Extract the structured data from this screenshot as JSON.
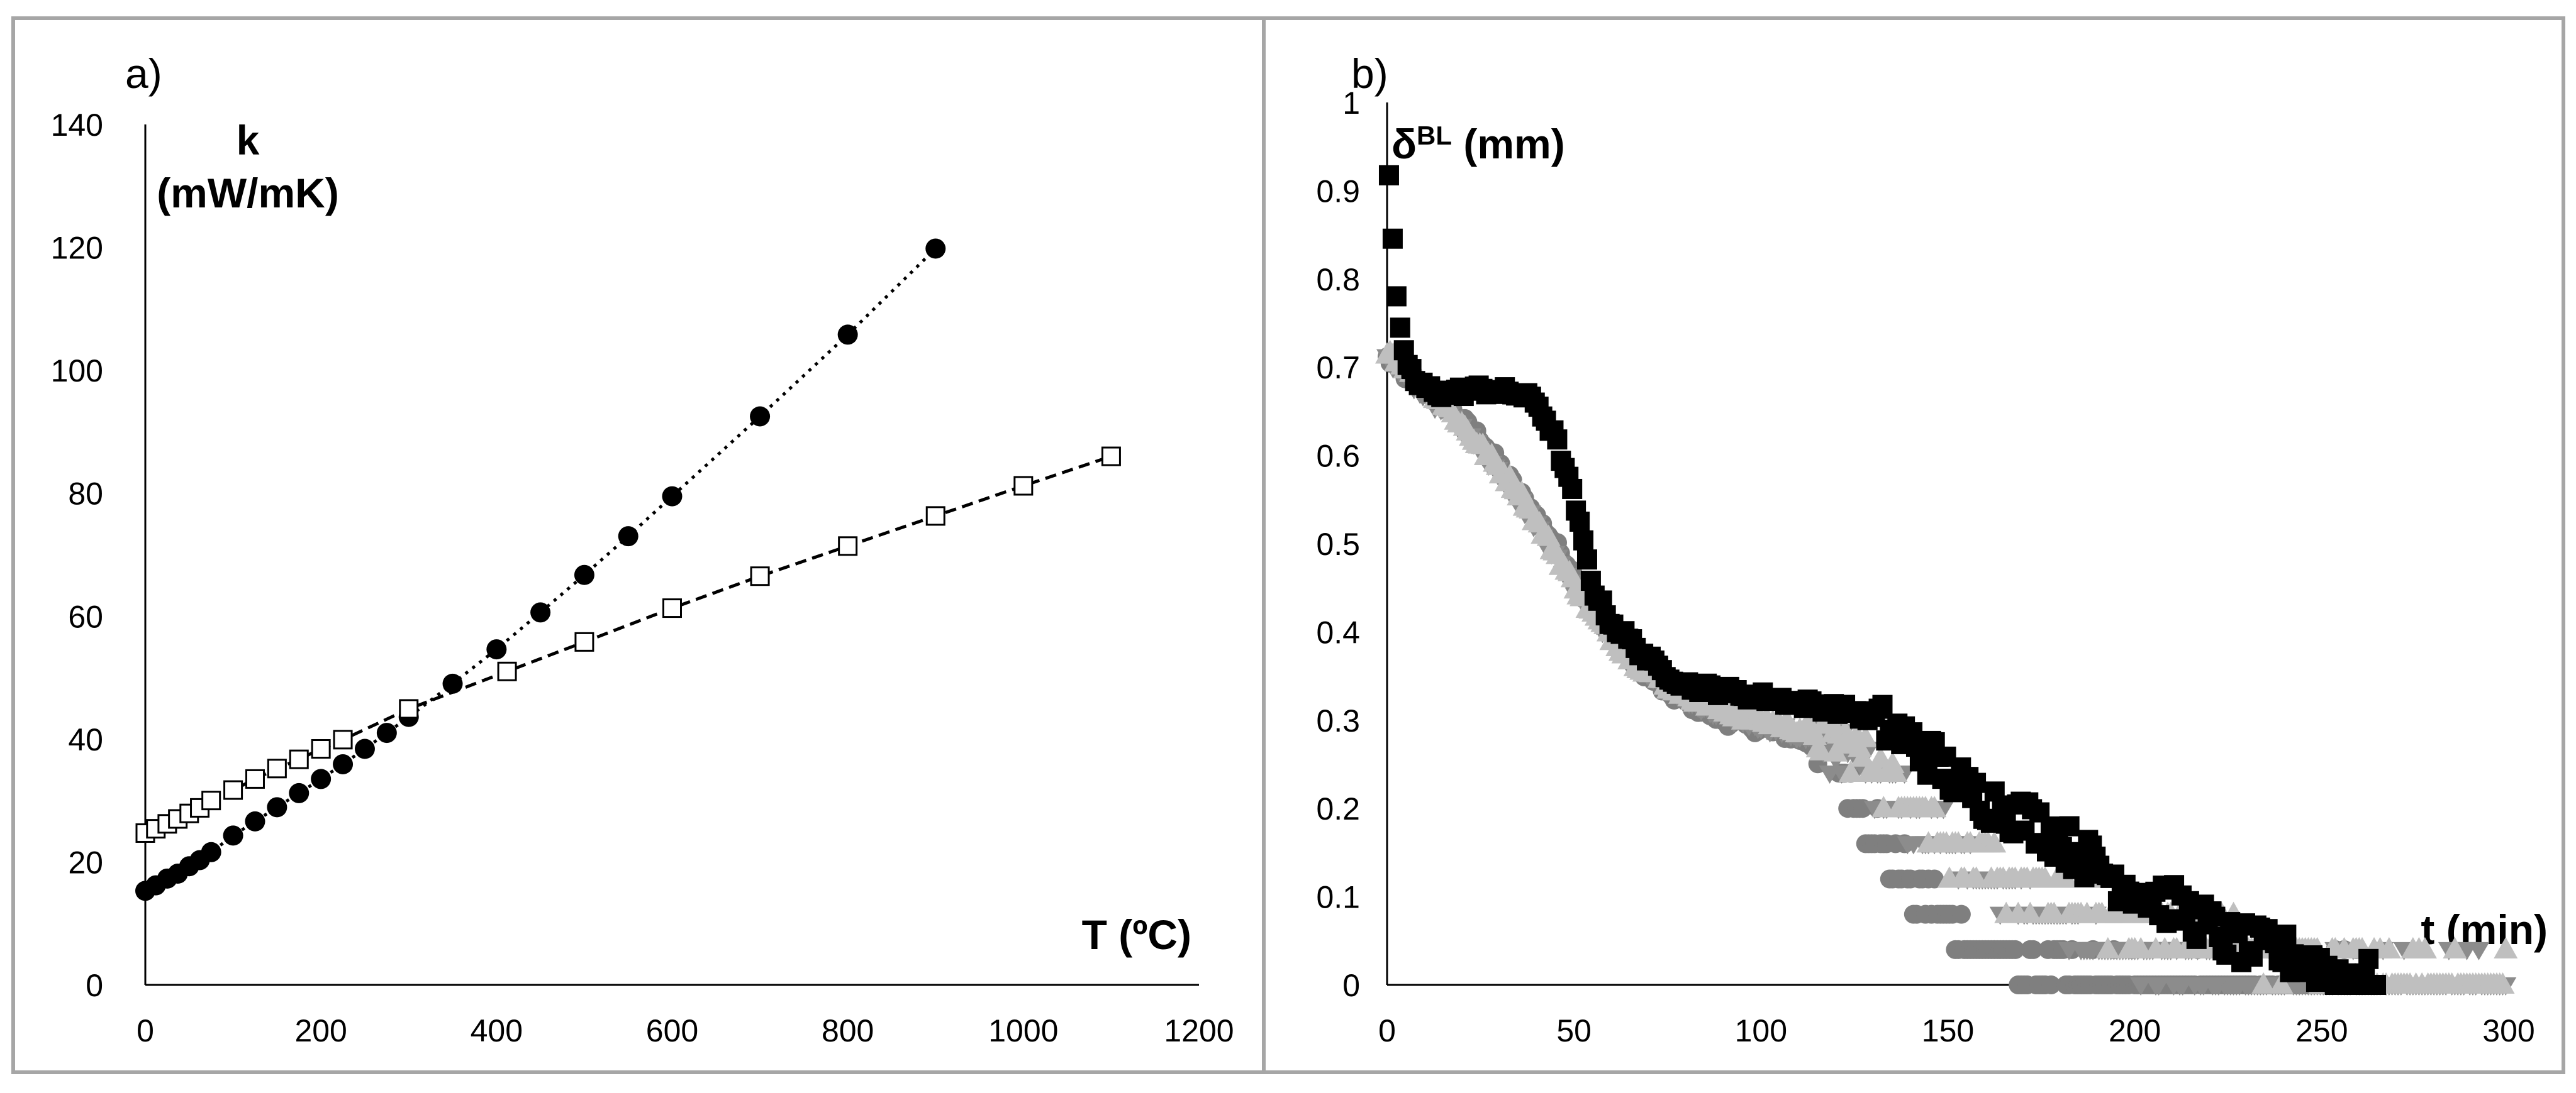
{
  "chart_data": [
    {
      "panel_label": "a)",
      "type": "line",
      "xlabel": "T (ºC)",
      "ylabel_line1": "k",
      "ylabel_line2": "(mW/mK)",
      "xlim": [
        0,
        1200
      ],
      "ylim": [
        0,
        140
      ],
      "x_ticks": [
        0,
        200,
        400,
        600,
        800,
        1000,
        1200
      ],
      "y_ticks": [
        0,
        20,
        40,
        60,
        80,
        100,
        120,
        140
      ],
      "grid": false,
      "series": [
        {
          "name": "filled circles (dotted fit)",
          "marker": "filled-circle",
          "line": "dotted",
          "x": [
            0,
            12,
            25,
            37,
            50,
            62,
            75,
            100,
            125,
            150,
            175,
            200,
            225,
            250,
            275,
            300,
            350,
            400,
            450,
            500,
            550,
            600,
            700,
            800,
            900
          ],
          "y": [
            15.3,
            16.2,
            17.3,
            18.1,
            19.3,
            20.3,
            21.6,
            24.3,
            26.6,
            28.9,
            31.2,
            33.5,
            35.9,
            38.4,
            41.0,
            43.6,
            49.0,
            54.6,
            60.6,
            66.7,
            73.0,
            79.5,
            92.5,
            105.8,
            119.8
          ]
        },
        {
          "name": "open squares (dashed fit)",
          "marker": "open-square",
          "line": "dashed",
          "x": [
            0,
            12,
            25,
            37,
            50,
            62,
            75,
            100,
            125,
            150,
            175,
            200,
            225,
            300,
            412,
            500,
            600,
            700,
            800,
            900,
            1000,
            1100
          ],
          "y": [
            24.7,
            25.4,
            26.2,
            27.0,
            27.9,
            28.8,
            30.0,
            31.7,
            33.5,
            35.2,
            36.7,
            38.4,
            39.9,
            44.9,
            51.0,
            55.8,
            61.3,
            66.5,
            71.4,
            76.3,
            81.2,
            86.0
          ]
        }
      ]
    },
    {
      "panel_label": "b)",
      "type": "scatter",
      "xlabel": "t (min)",
      "ylabel": "δ",
      "ylabel_sup": "BL",
      "ylabel_unit": " (mm)",
      "xlim": [
        0,
        300
      ],
      "ylim": [
        0,
        1
      ],
      "x_ticks": [
        0,
        50,
        100,
        150,
        200,
        250,
        300
      ],
      "y_ticks": [
        0,
        0.1,
        0.2,
        0.3,
        0.4,
        0.5,
        0.6,
        0.7,
        0.8,
        0.9,
        1
      ],
      "grid": false,
      "series": [
        {
          "name": "dark grey circles",
          "marker": "circle",
          "color": "#7f7f7f",
          "curve": [
            [
              0,
              0.71
            ],
            [
              5,
              0.69
            ],
            [
              15,
              0.66
            ],
            [
              25,
              0.62
            ],
            [
              35,
              0.56
            ],
            [
              45,
              0.5
            ],
            [
              55,
              0.43
            ],
            [
              65,
              0.37
            ],
            [
              75,
              0.33
            ],
            [
              90,
              0.3
            ],
            [
              110,
              0.28
            ],
            [
              120,
              0.26
            ],
            [
              128,
              0.2
            ],
            [
              135,
              0.14
            ],
            [
              145,
              0.09
            ],
            [
              155,
              0.05
            ],
            [
              170,
              0.02
            ],
            [
              190,
              0.0
            ],
            [
              260,
              0.0
            ]
          ]
        },
        {
          "name": "grey down-triangles",
          "marker": "triangle-down",
          "color": "#8c8c8c",
          "curve": [
            [
              0,
              0.71
            ],
            [
              10,
              0.67
            ],
            [
              20,
              0.63
            ],
            [
              30,
              0.58
            ],
            [
              40,
              0.52
            ],
            [
              50,
              0.45
            ],
            [
              60,
              0.39
            ],
            [
              70,
              0.35
            ],
            [
              85,
              0.31
            ],
            [
              105,
              0.29
            ],
            [
              125,
              0.26
            ],
            [
              140,
              0.2
            ],
            [
              155,
              0.14
            ],
            [
              175,
              0.08
            ],
            [
              200,
              0.03
            ],
            [
              230,
              0.0
            ],
            [
              300,
              0.0
            ]
          ]
        },
        {
          "name": "light grey triangles",
          "marker": "triangle-up",
          "color": "#bfbfbf",
          "curve": [
            [
              0,
              0.72
            ],
            [
              8,
              0.69
            ],
            [
              15,
              0.66
            ],
            [
              25,
              0.61
            ],
            [
              35,
              0.56
            ],
            [
              45,
              0.49
            ],
            [
              55,
              0.42
            ],
            [
              65,
              0.37
            ],
            [
              75,
              0.34
            ],
            [
              90,
              0.31
            ],
            [
              110,
              0.29
            ],
            [
              125,
              0.27
            ],
            [
              135,
              0.23
            ],
            [
              150,
              0.16
            ],
            [
              165,
              0.12
            ],
            [
              185,
              0.09
            ],
            [
              205,
              0.06
            ],
            [
              230,
              0.04
            ],
            [
              255,
              0.02
            ],
            [
              280,
              0.0
            ],
            [
              300,
              0.0
            ]
          ]
        },
        {
          "name": "black squares",
          "marker": "square",
          "color": "#000000",
          "curve": [
            [
              0.5,
              0.92
            ],
            [
              2,
              0.8
            ],
            [
              3,
              0.75
            ],
            [
              5,
              0.71
            ],
            [
              8,
              0.68
            ],
            [
              15,
              0.67
            ],
            [
              25,
              0.675
            ],
            [
              35,
              0.67
            ],
            [
              40,
              0.66
            ],
            [
              45,
              0.62
            ],
            [
              50,
              0.55
            ],
            [
              55,
              0.45
            ],
            [
              60,
              0.41
            ],
            [
              65,
              0.39
            ],
            [
              72,
              0.36
            ],
            [
              80,
              0.34
            ],
            [
              95,
              0.33
            ],
            [
              110,
              0.32
            ],
            [
              125,
              0.31
            ],
            [
              135,
              0.29
            ],
            [
              145,
              0.26
            ],
            [
              155,
              0.22
            ],
            [
              165,
              0.2
            ],
            [
              175,
              0.18
            ],
            [
              185,
              0.15
            ],
            [
              195,
              0.12
            ],
            [
              205,
              0.1
            ],
            [
              215,
              0.08
            ],
            [
              225,
              0.05
            ],
            [
              235,
              0.04
            ],
            [
              245,
              0.03
            ],
            [
              255,
              0.01
            ],
            [
              265,
              0.005
            ]
          ]
        }
      ]
    }
  ]
}
